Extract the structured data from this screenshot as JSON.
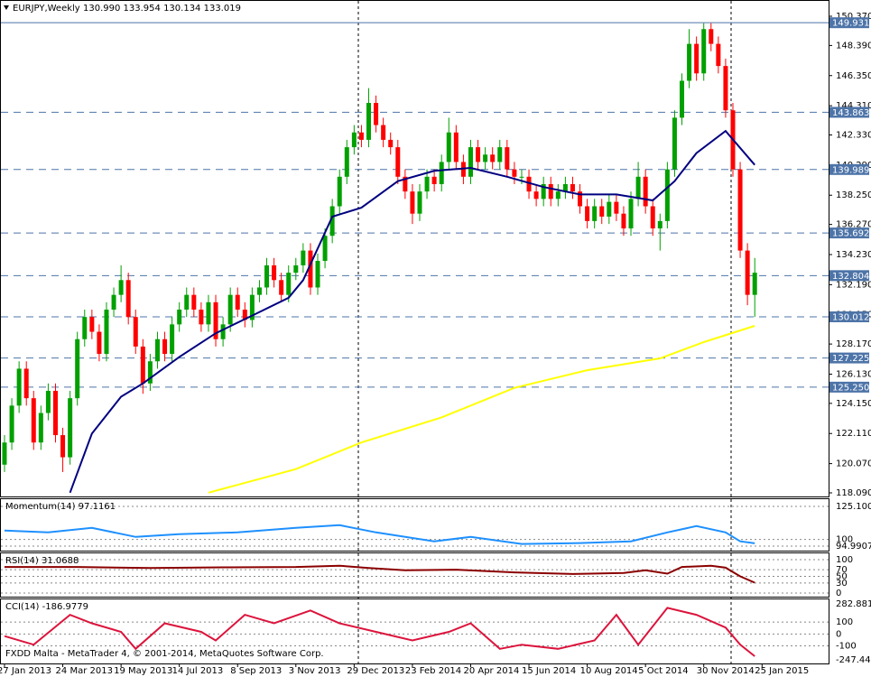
{
  "chart_data": {
    "type": "candlestick",
    "title": "EURJPY,Weekly",
    "quote": "130.990 133.954 130.134 133.019",
    "footer": "FXDD Malta - MetaTrader 4, © 2001-2014, MetaQuotes Software Corp.",
    "up_color": "#00a000",
    "down_color": "#ff0000",
    "level_color": "#4d74a8",
    "ylim": [
      118.09,
      150.37
    ],
    "yticks": [
      {
        "value": 150.37,
        "label": "150.370"
      },
      {
        "value": 148.39,
        "label": "148.390"
      },
      {
        "value": 146.35,
        "label": "146.350"
      },
      {
        "value": 144.31,
        "label": "144.310"
      },
      {
        "value": 142.33,
        "label": "142.330"
      },
      {
        "value": 140.29,
        "label": "140.290"
      },
      {
        "value": 138.25,
        "label": "138.250"
      },
      {
        "value": 136.27,
        "label": "136.270"
      },
      {
        "value": 134.23,
        "label": "134.230"
      },
      {
        "value": 132.19,
        "label": "132.190"
      },
      {
        "value": 130.15,
        "label": "130.150"
      },
      {
        "value": 128.17,
        "label": "128.170"
      },
      {
        "value": 126.13,
        "label": "126.130"
      },
      {
        "value": 124.15,
        "label": "124.150"
      },
      {
        "value": 122.11,
        "label": "122.110"
      },
      {
        "value": 120.07,
        "label": "120.070"
      },
      {
        "value": 118.09,
        "label": "118.090"
      }
    ],
    "levels": [
      149.931,
      143.863,
      139.989,
      135.692,
      132.804,
      130.012,
      127.225,
      {
        "value": 125.25,
        "label": "125.250"
      }
    ],
    "xlim": [
      0,
      104
    ],
    "xticks": [
      {
        "value": 0,
        "label": "27 Jan 2013"
      },
      {
        "value": 8,
        "label": "24 Mar 2013"
      },
      {
        "value": 16,
        "label": "19 May 2013"
      },
      {
        "value": 24,
        "label": "14 Jul 2013"
      },
      {
        "value": 32,
        "label": "8 Sep 2013"
      },
      {
        "value": 40,
        "label": "3 Nov 2013"
      },
      {
        "value": 48,
        "label": "29 Dec 2013"
      },
      {
        "value": 56,
        "label": "23 Feb 2014"
      },
      {
        "value": 64,
        "label": "20 Apr 2014"
      },
      {
        "value": 72,
        "label": "15 Jun 2014"
      },
      {
        "value": 80,
        "label": "10 Aug 2014"
      },
      {
        "value": 88,
        "label": "5 Oct 2014"
      },
      {
        "value": 96,
        "label": "30 Nov 2014"
      },
      {
        "value": 104,
        "label": "25 Jan 2015"
      }
    ],
    "candles": [
      [
        120.0,
        122.0,
        119.5,
        121.5
      ],
      [
        121.5,
        124.5,
        121.0,
        124.0
      ],
      [
        124.0,
        127.0,
        123.5,
        126.5
      ],
      [
        126.5,
        127.0,
        124.0,
        124.5
      ],
      [
        124.5,
        125.0,
        121.0,
        121.5
      ],
      [
        121.5,
        124.0,
        121.0,
        123.5
      ],
      [
        123.5,
        125.5,
        123.0,
        125.0
      ],
      [
        125.0,
        125.5,
        121.5,
        122.0
      ],
      [
        122.0,
        122.5,
        119.5,
        120.5
      ],
      [
        120.5,
        125.0,
        120.0,
        124.5
      ],
      [
        124.5,
        129.0,
        124.0,
        128.5
      ],
      [
        128.5,
        130.5,
        128.0,
        130.0
      ],
      [
        130.0,
        130.5,
        128.5,
        129.0
      ],
      [
        129.0,
        129.5,
        127.0,
        127.5
      ],
      [
        127.5,
        131.0,
        127.0,
        130.5
      ],
      [
        130.5,
        132.0,
        130.0,
        131.5
      ],
      [
        131.5,
        133.5,
        131.0,
        132.5
      ],
      [
        132.5,
        133.0,
        129.5,
        130.0
      ],
      [
        130.0,
        130.5,
        127.5,
        128.0
      ],
      [
        128.0,
        128.5,
        124.8,
        125.5
      ],
      [
        125.5,
        127.5,
        125.0,
        127.0
      ],
      [
        127.0,
        129.0,
        126.5,
        128.5
      ],
      [
        128.5,
        129.0,
        127.0,
        127.5
      ],
      [
        127.5,
        130.0,
        127.0,
        129.5
      ],
      [
        129.5,
        131.0,
        129.0,
        130.5
      ],
      [
        130.5,
        132.0,
        130.0,
        131.5
      ],
      [
        131.5,
        132.0,
        130.0,
        130.5
      ],
      [
        130.5,
        131.0,
        129.0,
        129.5
      ],
      [
        129.5,
        131.5,
        129.0,
        131.0
      ],
      [
        131.0,
        131.5,
        128.0,
        128.5
      ],
      [
        128.5,
        130.0,
        128.0,
        129.5
      ],
      [
        129.5,
        132.0,
        129.0,
        131.5
      ],
      [
        131.5,
        132.0,
        130.0,
        130.5
      ],
      [
        130.5,
        131.0,
        129.3,
        129.8
      ],
      [
        129.8,
        132.0,
        129.3,
        131.5
      ],
      [
        131.5,
        132.5,
        131.0,
        132.0
      ],
      [
        132.0,
        134.0,
        131.5,
        133.5
      ],
      [
        133.5,
        134.0,
        132.0,
        132.5
      ],
      [
        132.5,
        133.0,
        131.0,
        131.5
      ],
      [
        131.5,
        133.5,
        131.0,
        133.0
      ],
      [
        133.0,
        134.0,
        132.5,
        133.5
      ],
      [
        133.5,
        135.0,
        133.0,
        134.5
      ],
      [
        134.5,
        135.0,
        131.5,
        132.0
      ],
      [
        132.0,
        134.3,
        131.5,
        133.8
      ],
      [
        133.8,
        136.0,
        133.3,
        135.5
      ],
      [
        135.5,
        138.0,
        135.0,
        137.5
      ],
      [
        137.5,
        140.0,
        137.0,
        139.5
      ],
      [
        139.5,
        142.0,
        139.0,
        141.5
      ],
      [
        141.5,
        143.0,
        141.0,
        142.5
      ],
      [
        142.5,
        143.0,
        141.5,
        142.0
      ],
      [
        142.0,
        145.5,
        141.5,
        144.5
      ],
      [
        144.5,
        145.0,
        142.5,
        143.0
      ],
      [
        143.0,
        143.5,
        141.5,
        142.0
      ],
      [
        142.0,
        142.5,
        141.0,
        141.5
      ],
      [
        141.5,
        142.0,
        139.0,
        139.5
      ],
      [
        139.5,
        140.0,
        138.0,
        138.5
      ],
      [
        138.5,
        139.0,
        136.3,
        137.0
      ],
      [
        137.0,
        139.0,
        136.5,
        138.5
      ],
      [
        138.5,
        140.0,
        138.0,
        139.5
      ],
      [
        139.5,
        140.0,
        138.5,
        139.0
      ],
      [
        139.0,
        141.0,
        138.5,
        140.5
      ],
      [
        140.5,
        143.5,
        140.0,
        142.5
      ],
      [
        142.5,
        143.0,
        140.0,
        140.5
      ],
      [
        140.5,
        141.0,
        139.0,
        139.5
      ],
      [
        139.5,
        142.0,
        139.0,
        141.5
      ],
      [
        141.5,
        142.0,
        140.0,
        140.5
      ],
      [
        140.5,
        141.5,
        140.0,
        141.0
      ],
      [
        141.0,
        141.5,
        140.0,
        140.5
      ],
      [
        140.5,
        142.0,
        140.0,
        141.5
      ],
      [
        141.5,
        142.0,
        139.5,
        140.0
      ],
      [
        140.0,
        140.5,
        139.0,
        139.5
      ],
      [
        139.5,
        140.0,
        139.0,
        139.5
      ],
      [
        139.5,
        140.0,
        138.0,
        138.5
      ],
      [
        138.5,
        139.0,
        137.5,
        138.0
      ],
      [
        138.0,
        139.5,
        137.5,
        139.0
      ],
      [
        139.0,
        139.5,
        137.5,
        138.0
      ],
      [
        138.0,
        139.0,
        137.5,
        138.5
      ],
      [
        138.5,
        139.5,
        138.0,
        139.0
      ],
      [
        139.0,
        139.5,
        138.0,
        138.5
      ],
      [
        138.5,
        139.0,
        137.0,
        137.5
      ],
      [
        137.5,
        138.0,
        136.0,
        136.5
      ],
      [
        136.5,
        138.0,
        136.0,
        137.5
      ],
      [
        137.5,
        138.0,
        136.3,
        136.8
      ],
      [
        136.8,
        138.3,
        136.3,
        137.8
      ],
      [
        137.8,
        138.3,
        136.5,
        137.0
      ],
      [
        137.0,
        137.5,
        135.5,
        136.0
      ],
      [
        136.0,
        138.5,
        135.5,
        138.0
      ],
      [
        138.0,
        140.5,
        137.5,
        139.5
      ],
      [
        139.5,
        140.0,
        137.0,
        137.5
      ],
      [
        137.5,
        138.0,
        135.5,
        136.0
      ],
      [
        136.0,
        137.0,
        134.5,
        136.5
      ],
      [
        136.5,
        140.5,
        136.0,
        140.0
      ],
      [
        140.0,
        144.0,
        139.5,
        143.5
      ],
      [
        143.5,
        146.5,
        143.0,
        146.0
      ],
      [
        146.0,
        149.5,
        145.5,
        148.5
      ],
      [
        148.5,
        149.0,
        146.0,
        146.5
      ],
      [
        146.5,
        149.9,
        146.0,
        149.5
      ],
      [
        149.5,
        149.9,
        148.0,
        148.5
      ],
      [
        148.5,
        149.0,
        146.5,
        147.0
      ],
      [
        147.0,
        147.5,
        143.5,
        144.0
      ],
      [
        144.0,
        144.5,
        139.5,
        140.0
      ],
      [
        140.0,
        140.5,
        134.0,
        134.5
      ],
      [
        134.5,
        135.0,
        130.8,
        131.5
      ],
      [
        131.5,
        134.0,
        130.0,
        133.0
      ]
    ],
    "lines": [
      {
        "color": "#000080",
        "x": [
          9,
          12,
          16,
          19,
          24,
          29,
          34,
          39,
          41,
          45,
          49,
          54,
          59,
          64,
          69,
          74,
          79,
          84,
          89,
          92,
          95,
          99,
          103
        ],
        "values": [
          118.1,
          122.1,
          124.6,
          125.5,
          127.3,
          128.9,
          130.1,
          131.3,
          132.5,
          136.8,
          137.4,
          139.2,
          139.9,
          140.1,
          139.5,
          138.8,
          138.3,
          138.3,
          137.9,
          139.2,
          141.1,
          142.6,
          140.3
        ]
      },
      {
        "color": "#ffff00",
        "x": [
          28,
          40,
          49,
          60,
          70,
          80,
          90,
          96,
          103
        ],
        "values": [
          118.1,
          119.7,
          121.5,
          123.2,
          125.2,
          126.4,
          127.2,
          128.3,
          129.4
        ]
      }
    ],
    "indicators": [
      {
        "type": "line",
        "title": "Momentum(14) 97.1161",
        "color": "#1e90ff",
        "ylim": [
          94.9907,
          125.1002
        ],
        "yticks": [
          125.1002,
          100,
          94.9907
        ],
        "grid": true,
        "x": [
          0,
          6,
          12,
          18,
          24,
          32,
          40,
          46,
          51,
          59,
          64,
          71,
          79,
          86,
          91,
          95,
          99,
          101,
          103
        ],
        "values": [
          106.8,
          105.4,
          108.8,
          102.0,
          104.1,
          105.4,
          108.8,
          110.9,
          105.4,
          98.6,
          102.0,
          96.6,
          97.3,
          98.6,
          105.4,
          110.2,
          105.4,
          98.6,
          97.1
        ]
      },
      {
        "type": "line",
        "title": "RSI(14) 31.0688",
        "color": "#8b0000",
        "ylim": [
          0,
          100
        ],
        "yticks": [
          100,
          70,
          50,
          30,
          0
        ],
        "grid": true,
        "x": [
          0,
          10,
          20,
          30,
          40,
          46,
          50,
          55,
          62,
          70,
          78,
          85,
          88,
          91,
          93,
          97,
          99,
          101,
          103
        ],
        "values": [
          78,
          78,
          75,
          77,
          78,
          82,
          75,
          68,
          70,
          62,
          57,
          60,
          68,
          58,
          78,
          82,
          76,
          50,
          31.07
        ]
      },
      {
        "type": "line",
        "title": "CCI(14) -186.9779",
        "color": "#dc143c",
        "ylim": [
          -247.4474,
          282.8817
        ],
        "yticks": [
          282.8817,
          100,
          0,
          -100,
          -247.4474
        ],
        "grid": true,
        "x": [
          0,
          4,
          9,
          12,
          16,
          18,
          22,
          27,
          29,
          33,
          37,
          42,
          46,
          51,
          56,
          61,
          64,
          68,
          71,
          76,
          81,
          84,
          87,
          91,
          95,
          99,
          101,
          103
        ],
        "values": [
          -18,
          -90,
          161,
          90,
          18,
          -125,
          90,
          18,
          -54,
          161,
          90,
          197,
          90,
          18,
          -54,
          18,
          90,
          -125,
          -90,
          -125,
          -54,
          161,
          -90,
          219,
          161,
          54,
          -90,
          -187
        ]
      }
    ]
  }
}
